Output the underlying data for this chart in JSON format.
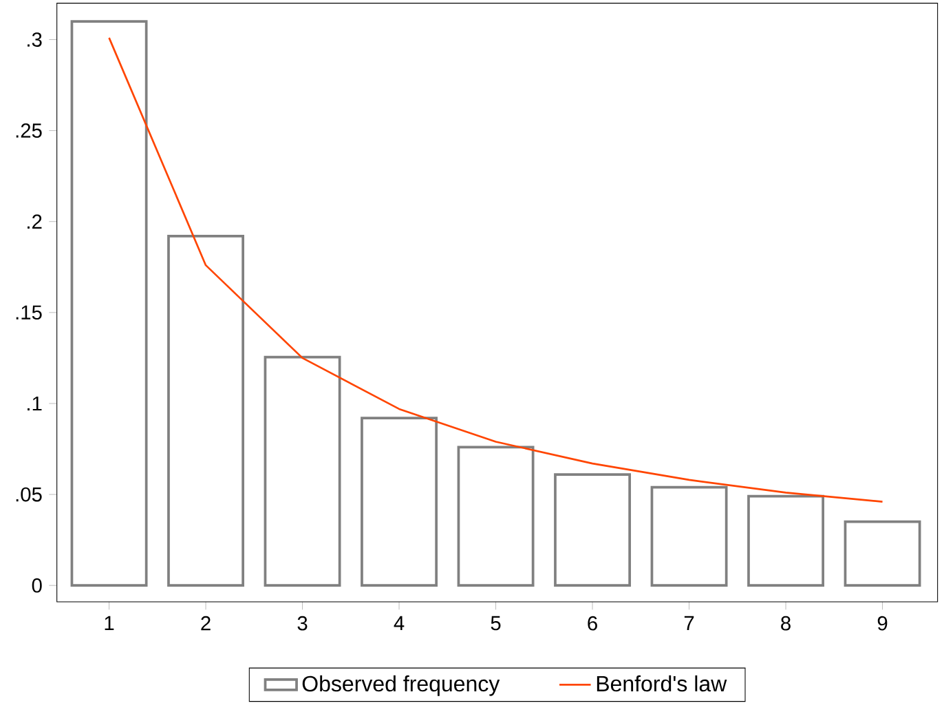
{
  "chart_data": {
    "type": "bar",
    "x": [
      1,
      2,
      3,
      4,
      5,
      6,
      7,
      8,
      9
    ],
    "series": [
      {
        "name": "Observed frequency",
        "color": "#808080",
        "values": [
          0.31,
          0.192,
          0.1255,
          0.092,
          0.076,
          0.061,
          0.054,
          0.049,
          0.035
        ]
      },
      {
        "name": "Benford's law",
        "type": "line",
        "color": "#ff4500",
        "values": [
          0.301,
          0.176,
          0.125,
          0.097,
          0.079,
          0.067,
          0.058,
          0.051,
          0.046
        ]
      }
    ],
    "xlim": [
      0.46,
      9.57
    ],
    "ylim": [
      -0.009,
      0.32
    ],
    "xticks": [
      1,
      2,
      3,
      4,
      5,
      6,
      7,
      8,
      9
    ],
    "yticks": [
      0,
      {
        "value": 0.05,
        "label": ".05"
      },
      {
        "value": 0.1,
        "label": ".1"
      },
      {
        "value": 0.15,
        "label": ".15"
      },
      {
        "value": 0.2,
        "label": ".2"
      },
      {
        "value": 0.25,
        "label": ".25"
      },
      {
        "value": 0.3,
        "label": ".3"
      }
    ],
    "grid": false,
    "legend": "bottom",
    "marker": "none",
    "line_style": "solid"
  }
}
